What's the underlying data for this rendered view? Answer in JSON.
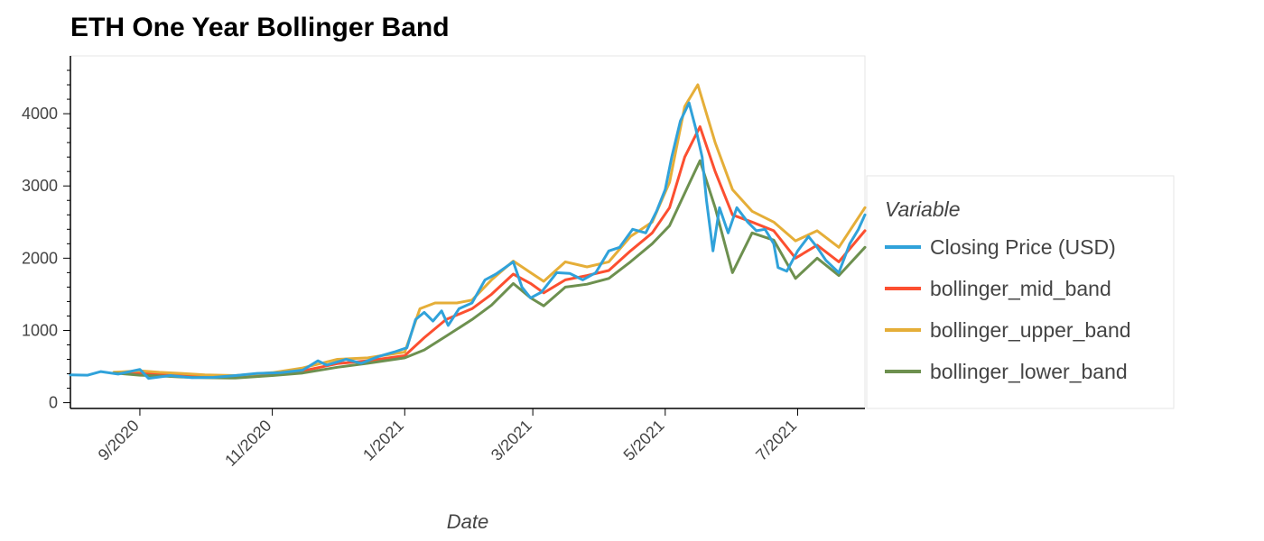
{
  "chart_data": {
    "type": "line",
    "title": "ETH One Year Bollinger Band",
    "xlabel": "Date",
    "ylabel": "",
    "x_range": [
      "2020-07-31",
      "2021-08-01"
    ],
    "ylim": [
      -80,
      4800
    ],
    "y_ticks": [
      0,
      1000,
      2000,
      3000,
      4000
    ],
    "x_ticks": [
      {
        "date": "2020-09-01",
        "label": "9/2020"
      },
      {
        "date": "2020-11-01",
        "label": "11/2020"
      },
      {
        "date": "2021-01-01",
        "label": "1/2021"
      },
      {
        "date": "2021-03-01",
        "label": "3/2021"
      },
      {
        "date": "2021-05-01",
        "label": "5/2021"
      },
      {
        "date": "2021-07-01",
        "label": "7/2021"
      }
    ],
    "grid": false,
    "legend": {
      "title": "Variable",
      "position": "right"
    },
    "series": [
      {
        "name": "Closing Price (USD)",
        "color": "#30a2da",
        "points": [
          [
            "2020-07-31",
            385
          ],
          [
            "2020-08-08",
            380
          ],
          [
            "2020-08-14",
            430
          ],
          [
            "2020-08-22",
            395
          ],
          [
            "2020-09-01",
            460
          ],
          [
            "2020-09-05",
            335
          ],
          [
            "2020-09-15",
            375
          ],
          [
            "2020-09-25",
            345
          ],
          [
            "2020-10-05",
            350
          ],
          [
            "2020-10-15",
            375
          ],
          [
            "2020-10-25",
            405
          ],
          [
            "2020-11-05",
            415
          ],
          [
            "2020-11-15",
            450
          ],
          [
            "2020-11-22",
            580
          ],
          [
            "2020-11-26",
            520
          ],
          [
            "2020-12-05",
            600
          ],
          [
            "2020-12-12",
            545
          ],
          [
            "2020-12-20",
            640
          ],
          [
            "2020-12-27",
            700
          ],
          [
            "2021-01-02",
            760
          ],
          [
            "2021-01-06",
            1150
          ],
          [
            "2021-01-10",
            1250
          ],
          [
            "2021-01-14",
            1130
          ],
          [
            "2021-01-18",
            1270
          ],
          [
            "2021-01-21",
            1070
          ],
          [
            "2021-01-26",
            1300
          ],
          [
            "2021-02-01",
            1380
          ],
          [
            "2021-02-07",
            1700
          ],
          [
            "2021-02-12",
            1780
          ],
          [
            "2021-02-20",
            1950
          ],
          [
            "2021-02-24",
            1600
          ],
          [
            "2021-02-28",
            1450
          ],
          [
            "2021-03-05",
            1530
          ],
          [
            "2021-03-12",
            1800
          ],
          [
            "2021-03-18",
            1790
          ],
          [
            "2021-03-24",
            1700
          ],
          [
            "2021-03-30",
            1800
          ],
          [
            "2021-04-05",
            2100
          ],
          [
            "2021-04-10",
            2150
          ],
          [
            "2021-04-16",
            2400
          ],
          [
            "2021-04-22",
            2350
          ],
          [
            "2021-04-27",
            2650
          ],
          [
            "2021-05-01",
            2950
          ],
          [
            "2021-05-04",
            3400
          ],
          [
            "2021-05-08",
            3900
          ],
          [
            "2021-05-12",
            4150
          ],
          [
            "2021-05-15",
            3800
          ],
          [
            "2021-05-18",
            3400
          ],
          [
            "2021-05-20",
            2800
          ],
          [
            "2021-05-23",
            2100
          ],
          [
            "2021-05-26",
            2700
          ],
          [
            "2021-05-30",
            2350
          ],
          [
            "2021-06-03",
            2700
          ],
          [
            "2021-06-08",
            2500
          ],
          [
            "2021-06-12",
            2380
          ],
          [
            "2021-06-16",
            2400
          ],
          [
            "2021-06-20",
            2200
          ],
          [
            "2021-06-22",
            1870
          ],
          [
            "2021-06-26",
            1820
          ],
          [
            "2021-07-01",
            2100
          ],
          [
            "2021-07-06",
            2300
          ],
          [
            "2021-07-10",
            2150
          ],
          [
            "2021-07-14",
            1970
          ],
          [
            "2021-07-20",
            1800
          ],
          [
            "2021-07-25",
            2200
          ],
          [
            "2021-07-29",
            2400
          ],
          [
            "2021-08-01",
            2600
          ]
        ]
      },
      {
        "name": "bollinger_mid_band",
        "color": "#fc4f30",
        "points": [
          [
            "2020-08-20",
            415
          ],
          [
            "2020-09-01",
            410
          ],
          [
            "2020-09-10",
            395
          ],
          [
            "2020-09-20",
            385
          ],
          [
            "2020-10-01",
            370
          ],
          [
            "2020-10-15",
            360
          ],
          [
            "2020-11-01",
            395
          ],
          [
            "2020-11-15",
            440
          ],
          [
            "2020-12-01",
            540
          ],
          [
            "2020-12-15",
            580
          ],
          [
            "2021-01-01",
            650
          ],
          [
            "2021-01-10",
            900
          ],
          [
            "2021-01-20",
            1150
          ],
          [
            "2021-02-01",
            1300
          ],
          [
            "2021-02-10",
            1500
          ],
          [
            "2021-02-20",
            1780
          ],
          [
            "2021-02-28",
            1650
          ],
          [
            "2021-03-06",
            1520
          ],
          [
            "2021-03-16",
            1700
          ],
          [
            "2021-03-26",
            1760
          ],
          [
            "2021-04-05",
            1830
          ],
          [
            "2021-04-15",
            2100
          ],
          [
            "2021-04-25",
            2350
          ],
          [
            "2021-05-03",
            2700
          ],
          [
            "2021-05-10",
            3400
          ],
          [
            "2021-05-17",
            3820
          ],
          [
            "2021-05-24",
            3200
          ],
          [
            "2021-06-01",
            2600
          ],
          [
            "2021-06-10",
            2500
          ],
          [
            "2021-06-20",
            2380
          ],
          [
            "2021-06-30",
            2000
          ],
          [
            "2021-07-10",
            2180
          ],
          [
            "2021-07-20",
            1950
          ],
          [
            "2021-08-01",
            2380
          ]
        ]
      },
      {
        "name": "bollinger_upper_band",
        "color": "#e5ae38",
        "points": [
          [
            "2020-08-20",
            420
          ],
          [
            "2020-09-01",
            440
          ],
          [
            "2020-09-10",
            420
          ],
          [
            "2020-09-20",
            405
          ],
          [
            "2020-10-01",
            385
          ],
          [
            "2020-10-15",
            375
          ],
          [
            "2020-11-01",
            415
          ],
          [
            "2020-11-15",
            480
          ],
          [
            "2020-12-01",
            600
          ],
          [
            "2020-12-15",
            620
          ],
          [
            "2021-01-01",
            700
          ],
          [
            "2021-01-08",
            1300
          ],
          [
            "2021-01-15",
            1380
          ],
          [
            "2021-01-25",
            1380
          ],
          [
            "2021-02-01",
            1420
          ],
          [
            "2021-02-10",
            1700
          ],
          [
            "2021-02-20",
            1960
          ],
          [
            "2021-02-28",
            1800
          ],
          [
            "2021-03-06",
            1680
          ],
          [
            "2021-03-16",
            1950
          ],
          [
            "2021-03-26",
            1880
          ],
          [
            "2021-04-05",
            1950
          ],
          [
            "2021-04-15",
            2300
          ],
          [
            "2021-04-25",
            2500
          ],
          [
            "2021-05-03",
            3050
          ],
          [
            "2021-05-10",
            4100
          ],
          [
            "2021-05-16",
            4400
          ],
          [
            "2021-05-24",
            3600
          ],
          [
            "2021-06-01",
            2950
          ],
          [
            "2021-06-10",
            2650
          ],
          [
            "2021-06-20",
            2500
          ],
          [
            "2021-06-30",
            2240
          ],
          [
            "2021-07-10",
            2380
          ],
          [
            "2021-07-20",
            2150
          ],
          [
            "2021-08-01",
            2700
          ]
        ]
      },
      {
        "name": "bollinger_lower_band",
        "color": "#6d904f",
        "points": [
          [
            "2020-08-20",
            410
          ],
          [
            "2020-09-01",
            380
          ],
          [
            "2020-09-10",
            370
          ],
          [
            "2020-09-20",
            355
          ],
          [
            "2020-10-01",
            345
          ],
          [
            "2020-10-15",
            340
          ],
          [
            "2020-11-01",
            375
          ],
          [
            "2020-11-15",
            410
          ],
          [
            "2020-12-01",
            490
          ],
          [
            "2020-12-15",
            545
          ],
          [
            "2021-01-01",
            620
          ],
          [
            "2021-01-10",
            730
          ],
          [
            "2021-01-20",
            920
          ],
          [
            "2021-02-01",
            1150
          ],
          [
            "2021-02-10",
            1350
          ],
          [
            "2021-02-20",
            1650
          ],
          [
            "2021-02-28",
            1450
          ],
          [
            "2021-03-06",
            1340
          ],
          [
            "2021-03-16",
            1600
          ],
          [
            "2021-03-26",
            1640
          ],
          [
            "2021-04-05",
            1720
          ],
          [
            "2021-04-15",
            1950
          ],
          [
            "2021-04-25",
            2200
          ],
          [
            "2021-05-03",
            2450
          ],
          [
            "2021-05-10",
            2900
          ],
          [
            "2021-05-17",
            3350
          ],
          [
            "2021-05-24",
            2700
          ],
          [
            "2021-06-01",
            1800
          ],
          [
            "2021-06-10",
            2350
          ],
          [
            "2021-06-20",
            2250
          ],
          [
            "2021-06-30",
            1720
          ],
          [
            "2021-07-10",
            2000
          ],
          [
            "2021-07-20",
            1760
          ],
          [
            "2021-08-01",
            2150
          ]
        ]
      }
    ]
  }
}
